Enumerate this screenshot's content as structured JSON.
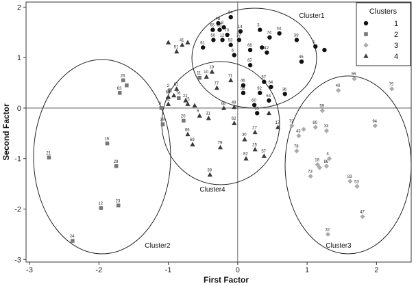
{
  "chart_data": {
    "type": "scatter",
    "xlabel": "First Factor",
    "ylabel": "Second Factor",
    "xlim": [
      -3.05,
      2.5
    ],
    "ylim": [
      -3.05,
      2.1
    ],
    "xticks": [
      "-3",
      "-2",
      "-1",
      "0",
      "1",
      "2"
    ],
    "yticks": [
      "2",
      "1",
      "0",
      "-1",
      "-2",
      "-3"
    ],
    "reference_lines": {
      "x": 0,
      "y": 0
    },
    "legend": {
      "title": "Clusters",
      "position": "top-right",
      "entries": [
        "1",
        "2",
        "3",
        "4"
      ]
    },
    "cluster_labels": [
      "Cluster1",
      "Cluster2",
      "Cluster3",
      "Cluster4"
    ],
    "series": [
      {
        "name": "1",
        "marker": "circle",
        "color": "#111111",
        "points": [
          {
            "id": "34",
            "x": -0.1,
            "y": 1.8
          },
          {
            "id": "48",
            "x": -0.28,
            "y": 1.68
          },
          {
            "id": "8",
            "x": -0.2,
            "y": 1.6
          },
          {
            "id": "65",
            "x": -0.36,
            "y": 1.55
          },
          {
            "id": "89",
            "x": -0.26,
            "y": 1.55
          },
          {
            "id": "14",
            "x": 0.04,
            "y": 1.52
          },
          {
            "id": "3",
            "x": 0.32,
            "y": 1.55
          },
          {
            "id": "44",
            "x": 0.6,
            "y": 1.48
          },
          {
            "id": "70",
            "x": -0.15,
            "y": 1.45
          },
          {
            "id": "74",
            "x": 0.46,
            "y": 1.4
          },
          {
            "id": "50",
            "x": -0.35,
            "y": 1.35
          },
          {
            "id": "12",
            "x": -0.22,
            "y": 1.35
          },
          {
            "id": "37",
            "x": 0.02,
            "y": 1.35
          },
          {
            "id": "39",
            "x": 0.85,
            "y": 1.35
          },
          {
            "id": "53",
            "x": -0.1,
            "y": 1.25
          },
          {
            "id": "61",
            "x": -0.5,
            "y": 1.2
          },
          {
            "id": "68",
            "x": 0.18,
            "y": 1.15
          },
          {
            "id": "42",
            "x": 0.42,
            "y": 1.1
          },
          {
            "id": "1",
            "x": 1.12,
            "y": 1.22
          },
          {
            "id": "6",
            "x": -0.05,
            "y": 1.05
          },
          {
            "id": "45",
            "x": 0.92,
            "y": 0.92
          },
          {
            "id": "87",
            "x": 0.18,
            "y": 0.85
          },
          {
            "id": "46",
            "x": 0.08,
            "y": 0.45
          },
          {
            "id": "58",
            "x": 0.08,
            "y": 0.3
          },
          {
            "id": "57",
            "x": 0.38,
            "y": 0.52
          },
          {
            "id": "64",
            "x": 0.48,
            "y": 0.42
          },
          {
            "id": "92",
            "x": 0.32,
            "y": 0.3
          },
          {
            "id": "36",
            "x": 0.68,
            "y": 0.28
          },
          {
            "id": "54",
            "x": 0.45,
            "y": 0.15
          },
          {
            "id": "60",
            "x": 0.24,
            "y": 0.06
          },
          {
            "id": "35",
            "x": 0.28,
            "y": -0.1
          },
          {
            "id": "",
            "x": 1.25,
            "y": 1.15
          },
          {
            "id": "",
            "x": 0.35,
            "y": 1.2
          }
        ]
      },
      {
        "name": "2",
        "marker": "square",
        "color": "#777777",
        "points": [
          {
            "id": "26",
            "x": -1.65,
            "y": 0.55
          },
          {
            "id": "",
            "x": -1.6,
            "y": 0.45
          },
          {
            "id": "63",
            "x": -1.7,
            "y": 0.3
          },
          {
            "id": "9",
            "x": -1.1,
            "y": 0.0
          },
          {
            "id": "29",
            "x": -1.08,
            "y": -0.32
          },
          {
            "id": "20",
            "x": -0.78,
            "y": -0.25
          },
          {
            "id": "16",
            "x": -1.88,
            "y": -0.7
          },
          {
            "id": "21",
            "x": -2.72,
            "y": -0.98
          },
          {
            "id": "28",
            "x": -1.75,
            "y": -1.15
          },
          {
            "id": "12",
            "x": -1.97,
            "y": -1.98
          },
          {
            "id": "23",
            "x": -1.72,
            "y": -1.93
          },
          {
            "id": "24",
            "x": -2.38,
            "y": -2.63
          },
          {
            "id": "2",
            "x": -0.98,
            "y": 0.35
          },
          {
            "id": "76",
            "x": -0.85,
            "y": 0.2
          },
          {
            "id": "11",
            "x": -0.55,
            "y": 0.6
          }
        ]
      },
      {
        "name": "3",
        "marker": "diamond",
        "color": "#aaaaaa",
        "points": [
          {
            "id": "55",
            "x": 1.68,
            "y": 0.58
          },
          {
            "id": "40",
            "x": 1.45,
            "y": 0.35
          },
          {
            "id": "75",
            "x": 2.22,
            "y": 0.38
          },
          {
            "id": "59",
            "x": 1.22,
            "y": -0.05
          },
          {
            "id": "72",
            "x": 0.78,
            "y": -0.35
          },
          {
            "id": "80",
            "x": 1.12,
            "y": -0.38
          },
          {
            "id": "33",
            "x": 1.28,
            "y": -0.45
          },
          {
            "id": "94",
            "x": 1.98,
            "y": -0.35
          },
          {
            "id": "43",
            "x": 0.88,
            "y": -0.55
          },
          {
            "id": "",
            "x": 0.95,
            "y": -0.42
          },
          {
            "id": "78",
            "x": 0.85,
            "y": -0.85
          },
          {
            "id": "4",
            "x": 1.32,
            "y": -1.0
          },
          {
            "id": "18",
            "x": 1.15,
            "y": -1.12
          },
          {
            "id": "86",
            "x": 1.28,
            "y": -1.15
          },
          {
            "id": "73",
            "x": 1.05,
            "y": -1.35
          },
          {
            "id": "",
            "x": 1.18,
            "y": -1.18
          },
          {
            "id": "83",
            "x": 1.62,
            "y": -1.45
          },
          {
            "id": "53",
            "x": 1.72,
            "y": -1.55
          },
          {
            "id": "47",
            "x": 1.8,
            "y": -2.15
          },
          {
            "id": "32",
            "x": 1.3,
            "y": -2.5
          }
        ]
      },
      {
        "name": "4",
        "marker": "triangle",
        "color": "#3a3a3a",
        "points": [
          {
            "id": "41",
            "x": -0.8,
            "y": 1.25
          },
          {
            "id": "51",
            "x": -0.88,
            "y": 1.12
          },
          {
            "id": "",
            "x": -1.0,
            "y": 1.3
          },
          {
            "id": "",
            "x": -0.72,
            "y": 1.3
          },
          {
            "id": "10",
            "x": -0.45,
            "y": 0.62
          },
          {
            "id": "19",
            "x": -0.37,
            "y": 0.72
          },
          {
            "id": "71",
            "x": -0.1,
            "y": 0.55
          },
          {
            "id": "77",
            "x": -0.3,
            "y": 0.4
          },
          {
            "id": "81",
            "x": -0.88,
            "y": 0.38
          },
          {
            "id": "64",
            "x": -1.0,
            "y": 0.22
          },
          {
            "id": "22",
            "x": -0.75,
            "y": 0.15
          },
          {
            "id": "52",
            "x": -1.0,
            "y": 0.08
          },
          {
            "id": "15",
            "x": -0.72,
            "y": 0.08
          },
          {
            "id": "",
            "x": -0.92,
            "y": 0.25
          },
          {
            "id": "",
            "x": -0.62,
            "y": 0.05
          },
          {
            "id": "68",
            "x": -0.2,
            "y": 0.0
          },
          {
            "id": "49",
            "x": -0.05,
            "y": 0.02
          },
          {
            "id": "5",
            "x": -0.55,
            "y": -0.15
          },
          {
            "id": "31",
            "x": -0.42,
            "y": -0.2
          },
          {
            "id": "62",
            "x": -0.05,
            "y": -0.3
          },
          {
            "id": "66",
            "x": -0.72,
            "y": -0.52
          },
          {
            "id": "69",
            "x": -0.65,
            "y": -0.72
          },
          {
            "id": "27",
            "x": 0.25,
            "y": -0.48
          },
          {
            "id": "17",
            "x": 0.58,
            "y": -0.38
          },
          {
            "id": "30",
            "x": 0.1,
            "y": -0.62
          },
          {
            "id": "25",
            "x": 0.25,
            "y": -0.82
          },
          {
            "id": "79",
            "x": -0.25,
            "y": -0.78
          },
          {
            "id": "82",
            "x": 0.12,
            "y": -1.0
          },
          {
            "id": "57",
            "x": 0.38,
            "y": -0.95
          },
          {
            "id": "39",
            "x": -0.4,
            "y": -1.32
          },
          {
            "id": "",
            "x": 0.45,
            "y": -0.1
          }
        ]
      }
    ]
  }
}
